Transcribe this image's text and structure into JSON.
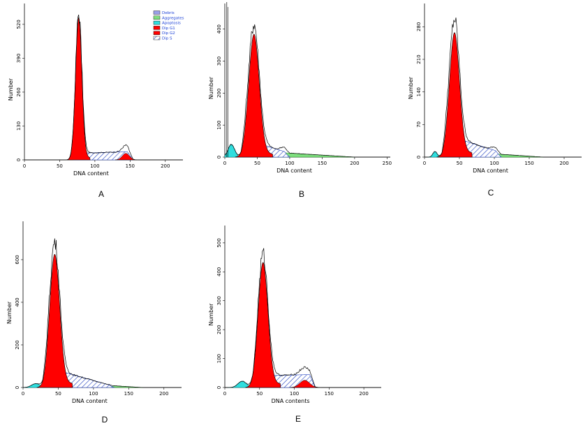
{
  "legend": {
    "entries": [
      {
        "label": "Debris",
        "color": "#9aa0ea",
        "pattern": "solid"
      },
      {
        "label": "Aggregates",
        "color": "#7fe07f",
        "pattern": "solid"
      },
      {
        "label": "Apoptosis",
        "color": "#2fdede",
        "pattern": "solid"
      },
      {
        "label": "Dip G1",
        "color": "#ff0000",
        "pattern": "solid"
      },
      {
        "label": "Dip G2",
        "color": "#ff0000",
        "pattern": "solid"
      },
      {
        "label": "Dip S",
        "color": "#1f3fbf",
        "pattern": "hatch"
      }
    ]
  },
  "colors": {
    "g1": "#ff0000",
    "s_phase": "#1f3fbf",
    "apoptosis": "#2fdede",
    "aggregates": "#7fe07f",
    "outline": "#000000"
  },
  "chart_data": [
    {
      "panel": "A",
      "type": "area",
      "xlabel": "DNA content",
      "ylabel": "Number",
      "xticks": [
        0,
        50,
        100,
        150,
        200
      ],
      "xtick_labels": [
        "0",
        "50",
        "100",
        "150",
        "200"
      ],
      "yticks": [
        0,
        130,
        260,
        390,
        520
      ],
      "ytick_labels": [
        "0",
        "130",
        "260",
        "390",
        "520"
      ],
      "xlim": [
        0,
        225
      ],
      "ylim": [
        0,
        600
      ],
      "g1": {
        "center": 77,
        "height": 540,
        "sigma": 4.5
      },
      "g2": {
        "center": 144,
        "height": 25,
        "sigma": 5
      },
      "s_phase": {
        "start": 70,
        "end": 154,
        "h_start": 25,
        "h_end": 32
      },
      "apoptosis": null,
      "aggregates": null
    },
    {
      "panel": "B",
      "type": "area",
      "xlabel": "DNA content",
      "ylabel": "Number",
      "xticks": [
        0,
        50,
        100,
        150,
        200,
        250
      ],
      "xtick_labels": [
        "0",
        "50",
        "100",
        "150",
        "200",
        "250"
      ],
      "yticks": [
        0,
        100,
        200,
        300,
        400
      ],
      "ytick_labels": [
        "0",
        "100",
        "200",
        "300",
        "400"
      ],
      "xlim": [
        0,
        255
      ],
      "ylim": [
        0,
        480
      ],
      "g1": {
        "center": 45,
        "height": 370,
        "sigma": 8
      },
      "g2": null,
      "s_phase": {
        "start": 25,
        "end": 100,
        "h_start": 60,
        "h_end": 12
      },
      "apoptosis": {
        "center": 10,
        "height": 40,
        "sigma": 5
      },
      "aggregates": {
        "start": 80,
        "end": 200,
        "h_start": 15,
        "h_end": 0
      }
    },
    {
      "panel": "C",
      "type": "area",
      "xlabel": "DNA content",
      "ylabel": "Number",
      "xticks": [
        0,
        50,
        100,
        150,
        200
      ],
      "xtick_labels": [
        "0",
        "50",
        "100",
        "150",
        "200"
      ],
      "yticks": [
        0,
        70,
        140,
        210,
        280
      ],
      "ytick_labels": [
        "0",
        "70",
        "140",
        "210",
        "280"
      ],
      "xlim": [
        0,
        225
      ],
      "ylim": [
        0,
        330
      ],
      "g1": {
        "center": 43,
        "height": 255,
        "sigma": 7
      },
      "g2": null,
      "s_phase": {
        "start": 25,
        "end": 110,
        "h_start": 50,
        "h_end": 10
      },
      "apoptosis": {
        "center": 15,
        "height": 12,
        "sigma": 3
      },
      "aggregates": {
        "start": 90,
        "end": 170,
        "h_start": 8,
        "h_end": 0
      }
    },
    {
      "panel": "D",
      "type": "area",
      "xlabel": "DNA content",
      "ylabel": "Number",
      "xticks": [
        0,
        50,
        100,
        150,
        200
      ],
      "xtick_labels": [
        "0",
        "50",
        "100",
        "150",
        "200"
      ],
      "yticks": [
        0,
        200,
        400,
        600
      ],
      "ytick_labels": [
        "0",
        "200",
        "400",
        "600"
      ],
      "xlim": [
        0,
        225
      ],
      "ylim": [
        0,
        780
      ],
      "g1": {
        "center": 45,
        "height": 600,
        "sigma": 7
      },
      "g2": null,
      "s_phase": {
        "start": 28,
        "end": 130,
        "h_start": 100,
        "h_end": 5
      },
      "apoptosis": {
        "center": 18,
        "height": 18,
        "sigma": 6
      },
      "aggregates": {
        "start": 120,
        "end": 170,
        "h_start": 10,
        "h_end": 0
      }
    },
    {
      "panel": "E",
      "type": "area",
      "xlabel": "DNA contents",
      "ylabel": "Number",
      "xticks": [
        0,
        50,
        100,
        150,
        200
      ],
      "xtick_labels": [
        "0",
        "50",
        "100",
        "150",
        "200"
      ],
      "yticks": [
        0,
        100,
        200,
        300,
        400,
        500
      ],
      "ytick_labels": [
        "0",
        "100",
        "200",
        "300",
        "400",
        "500"
      ],
      "xlim": [
        0,
        225
      ],
      "ylim": [
        0,
        560
      ],
      "g1": {
        "center": 55,
        "height": 420,
        "sigma": 7
      },
      "g2": {
        "center": 115,
        "height": 25,
        "sigma": 7
      },
      "s_phase": {
        "start": 40,
        "end": 130,
        "h_start": 40,
        "h_end": 45
      },
      "apoptosis": {
        "center": 25,
        "height": 22,
        "sigma": 6
      },
      "aggregates": null
    }
  ]
}
